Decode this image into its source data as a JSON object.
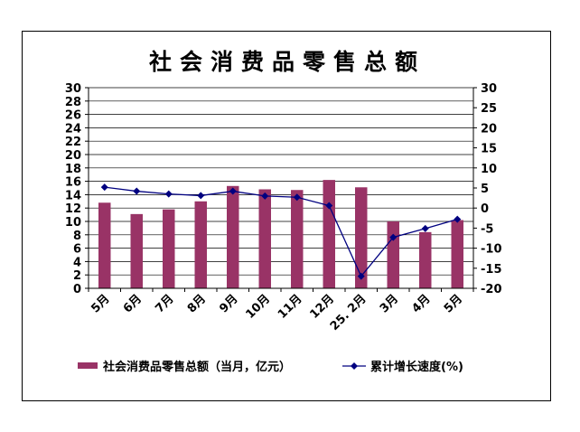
{
  "colors": {
    "bar": "#993366",
    "line": "#000080",
    "grid": "#000000",
    "axis": "#000000"
  },
  "chart_data": {
    "type": "bar",
    "title": "社会消费品零售总额",
    "categories": [
      "5月",
      "6月",
      "7月",
      "8月",
      "9月",
      "10月",
      "11月",
      "12月",
      "25. 2月",
      "3月",
      "4月",
      "5月"
    ],
    "series": [
      {
        "name": "社会消费品零售总额（当月，亿元）",
        "type": "bar",
        "axis": "left",
        "values": [
          12.8,
          11.1,
          11.8,
          13.0,
          15.3,
          14.8,
          14.7,
          16.2,
          15.1,
          10.0,
          8.4,
          10.2
        ]
      },
      {
        "name": "累计增长速度(%)",
        "type": "line",
        "axis": "right",
        "values": [
          5.2,
          4.2,
          3.5,
          3.1,
          4.2,
          3.0,
          2.7,
          0.6,
          -17.0,
          -7.3,
          -5.1,
          -2.8
        ]
      }
    ],
    "y_left": {
      "ylim": [
        0,
        30
      ],
      "ticks": [
        "0",
        "2",
        "4",
        "6",
        "8",
        "10",
        "12",
        "14",
        "16",
        "18",
        "20",
        "22",
        "24",
        "26",
        "28",
        "30"
      ]
    },
    "y_right": {
      "ylim": [
        -20,
        30
      ],
      "ticks": [
        "-20",
        "-15",
        "-10",
        "-5",
        "0",
        "5",
        "10",
        "15",
        "20",
        "25",
        "30"
      ]
    },
    "grid": true,
    "legend": "bottom"
  }
}
